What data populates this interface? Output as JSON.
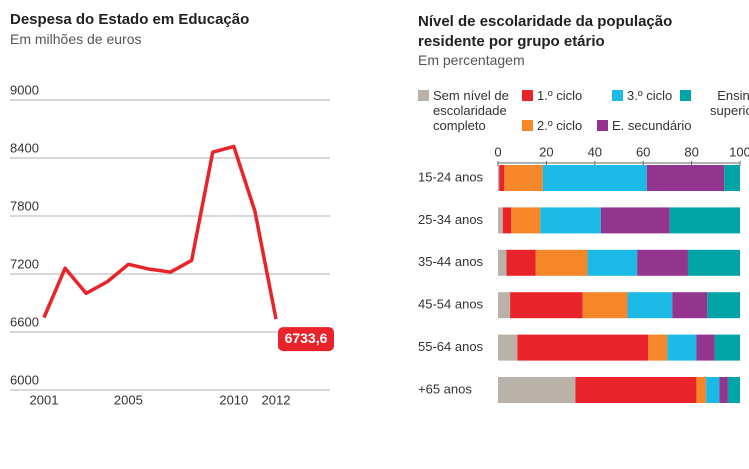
{
  "chart_data": [
    {
      "type": "line",
      "title": "Despesa do Estado em Educação",
      "subtitle": "Em milhões de euros",
      "x": [
        2001,
        2002,
        2003,
        2004,
        2005,
        2006,
        2007,
        2008,
        2009,
        2010,
        2011,
        2012
      ],
      "series": [
        {
          "name": null,
          "color": "#e8242a",
          "values": [
            6750,
            7260,
            7000,
            7120,
            7300,
            7250,
            7220,
            7340,
            8460,
            8520,
            7850,
            6733.6
          ],
          "value_labels": [
            null,
            null,
            null,
            null,
            null,
            null,
            null,
            null,
            null,
            null,
            null,
            "6733,6"
          ]
        }
      ],
      "xlim": [
        2001,
        2012
      ],
      "xticks": [
        2001,
        2005,
        2010,
        2012
      ],
      "ylim": [
        6000,
        9000
      ],
      "yticks": [
        6000,
        6600,
        7200,
        7800,
        8400,
        9000
      ],
      "grid": true
    },
    {
      "type": "stacked-bar-horizontal",
      "title": "Nível de escolaridade da população residente por grupo etário",
      "subtitle": "Em percentagem",
      "categories": [
        "15-24 anos",
        "25-34 anos",
        "35-44 anos",
        "45-54 anos",
        "55-64 anos",
        "+65 anos"
      ],
      "series": [
        {
          "name": "Sem nível de escolaridade completo",
          "color": "#bab2a8",
          "values": [
            0.5,
            2,
            3.5,
            5,
            8,
            32
          ]
        },
        {
          "name": "1.º ciclo",
          "color": "#e8242a",
          "values": [
            2,
            3.5,
            12,
            30,
            54,
            50
          ]
        },
        {
          "name": "2.º ciclo",
          "color": "#f5862a",
          "values": [
            16,
            12,
            21.5,
            18.5,
            8,
            4
          ]
        },
        {
          "name": "3.º ciclo",
          "color": "#1bb9e6",
          "values": [
            43,
            25,
            20.5,
            18.5,
            12,
            5.5
          ]
        },
        {
          "name": "E. secundário",
          "color": "#93358f",
          "values": [
            32,
            28.5,
            21,
            14.5,
            7.5,
            3.5
          ]
        },
        {
          "name": "Ensino superior",
          "color": "#00a3a6",
          "values": [
            6.5,
            29,
            21.5,
            13.5,
            10.5,
            5
          ]
        }
      ],
      "xlim": [
        0,
        100
      ],
      "xticks": [
        0,
        20,
        40,
        60,
        80,
        100
      ]
    }
  ]
}
